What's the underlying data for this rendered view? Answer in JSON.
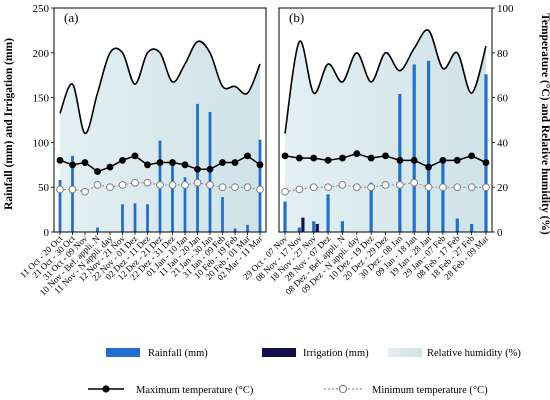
{
  "chart_data": {
    "type": "bar",
    "ylabel_left": "Rainfall (mm) and Irrigation (mm)",
    "ylabel_right": "Temperature (°C) and Relative humidity (%)",
    "ylim_left": [
      0,
      250
    ],
    "yticks_left": [
      "0",
      "50",
      "100",
      "150",
      "200",
      "250"
    ],
    "ylim_right": [
      0,
      100
    ],
    "yticks_right": [
      "0",
      "20",
      "40",
      "60",
      "80",
      "100"
    ],
    "grid": false,
    "legend_placement": "bottom",
    "colors": {
      "rainfall": "#1f6fd1",
      "irrigation": "#10104e",
      "humidity_fill": "#dbeaee",
      "max_temp": "#000000",
      "min_temp": "#ffffff"
    },
    "legend": {
      "rainfall": "Rainfall (mm)",
      "irrigation": "Irrigation (mm)",
      "humidity": "Relative humidity (%)",
      "max_temp": "Maximum temperature (°C)",
      "min_temp": "Minimum temperature (°C)"
    },
    "panels": [
      {
        "label": "(a)",
        "categories": [
          "11 Oct - 20 Oct",
          "21 Oct - 30 Oct",
          "31 Oct - 09 Nov",
          "10 Nov - Bef. appli. N",
          "11 Nov - N appli. day",
          "12 Nov - 21 Nov",
          "22 Nov - 01 Dez",
          "02 Dez - 11 Dez",
          "12 Dez - 21 Dez",
          "22 Dez - 31 Dez",
          "01 Jan - 10 Jan",
          "11 Jan - 20 Jan",
          "21 Jan - 30 Jan",
          "31 Jan - 09 Feb",
          "10 Feb - 19 Feb",
          "20 Feb - 01 Mar",
          "02 Mar - 11 Mar"
        ],
        "rainfall": [
          58,
          85,
          0,
          5,
          0,
          31,
          32,
          31,
          102,
          78,
          61,
          143,
          134,
          39,
          4,
          8,
          103
        ],
        "irrigation": [
          0,
          0,
          0,
          0,
          0,
          0,
          0,
          0,
          0,
          0,
          0,
          0,
          0,
          0,
          0,
          0,
          0
        ],
        "humidity": [
          53,
          66,
          44,
          62,
          80,
          80,
          66,
          80,
          80,
          67,
          75,
          85,
          80,
          65,
          65,
          62,
          75
        ],
        "max_temp": [
          32,
          30,
          31,
          27,
          29,
          32,
          34,
          30,
          31,
          31,
          30,
          28,
          28,
          31,
          31,
          34,
          30
        ],
        "min_temp": [
          19,
          19,
          18,
          21,
          20,
          21,
          22,
          22,
          21,
          21,
          21,
          22,
          21,
          20,
          20,
          20,
          19
        ]
      },
      {
        "label": "(b)",
        "categories": [
          "29 Oct - 07 Nov",
          "08 Nov - 17 Nov",
          "18 Nov - 27 Nov",
          "28 Nov - 07 Dez",
          "08 Dez - Bef. appli. N",
          "09 Dez - N appli. day",
          "10 Dez - 19 Dez",
          "20 Dez - 29 Dez",
          "30 Dez - 08 Jan",
          "09 Jan - 18 Jan",
          "19 Jan - 28 Jan",
          "29 Jan - 07 Feb",
          "08 Feb - 17 Feb",
          "18 Feb - 27 Feb",
          "28 Feb - 09 Mar"
        ],
        "rainfall": [
          34,
          5,
          12,
          42,
          12,
          0,
          55,
          0,
          154,
          187,
          191,
          81,
          15,
          9,
          176
        ],
        "irrigation": [
          0,
          16,
          9,
          0,
          0,
          0,
          0,
          0,
          0,
          0,
          0,
          0,
          0,
          0,
          0
        ],
        "humidity": [
          44,
          85,
          62,
          75,
          67,
          80,
          67,
          80,
          72,
          82,
          90,
          73,
          80,
          62,
          83
        ],
        "max_temp": [
          34,
          33,
          33,
          32,
          33,
          35,
          33,
          34,
          32,
          32,
          29,
          32,
          32,
          34,
          31
        ],
        "min_temp": [
          18,
          19,
          20,
          20,
          21,
          20,
          20,
          21,
          21,
          22,
          20,
          20,
          20,
          20,
          20
        ]
      }
    ]
  }
}
